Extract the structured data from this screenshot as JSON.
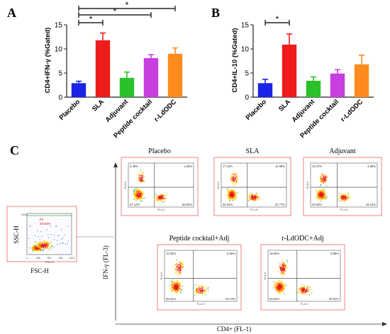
{
  "chart_data": [
    {
      "type": "bar",
      "panel_label": "A",
      "ylabel": "CD4+IFN-γ (%Gated)",
      "ylim": [
        0,
        15
      ],
      "yticks": [
        "0",
        "5",
        "10",
        "15"
      ],
      "categories": [
        "Placebo",
        "SLA",
        "Adjuvant",
        "Peptide cocktail",
        "r-LdODC"
      ],
      "values": [
        2.9,
        11.8,
        4.0,
        8.1,
        9.0
      ],
      "errors": [
        0.4,
        1.5,
        1.2,
        0.7,
        1.2
      ],
      "colors": [
        "#1a23e6",
        "#ee1c1c",
        "#2bc12b",
        "#c83ee0",
        "#ff8a1e"
      ],
      "significance": [
        {
          "from": 0,
          "to": 1,
          "label": "*"
        },
        {
          "from": 0,
          "to": 3,
          "label": "*"
        },
        {
          "from": 0,
          "to": 4,
          "label": "*"
        }
      ]
    },
    {
      "type": "bar",
      "panel_label": "B",
      "ylabel": "CD4+IL-10 (%Gated)",
      "ylim": [
        0,
        15
      ],
      "yticks": [
        "0",
        "5",
        "10",
        "15"
      ],
      "categories": [
        "Placebo",
        "SLA",
        "Adjuvant",
        "Peptide cocktail",
        "r-LdODC"
      ],
      "values": [
        2.9,
        10.9,
        3.4,
        4.9,
        6.8
      ],
      "errors": [
        0.8,
        2.2,
        0.8,
        0.8,
        1.9
      ],
      "colors": [
        "#1a23e6",
        "#ee1c1c",
        "#2bc12b",
        "#c83ee0",
        "#ff8a1e"
      ],
      "significance": [
        {
          "from": 0,
          "to": 1,
          "label": "*"
        }
      ]
    }
  ],
  "panel_c": {
    "label": "C",
    "x_axis_title": "CD4+ (FL-1)",
    "y_axis_title": "IFN-γ (FL-3)",
    "gating": {
      "title": "FSC-H",
      "ylabel": "SSC-H",
      "gate_label": "P1",
      "gate_percent": "49.92%",
      "x_ticks": [
        "0",
        "256",
        "512",
        "768",
        "1024"
      ],
      "x_axis_small": "FSC-H",
      "y_top": "1024"
    },
    "plots": [
      {
        "title": "Placebo",
        "q1": "0.48%",
        "q2": "1.56%",
        "q3": "67.14%",
        "q4": "30.82%"
      },
      {
        "title": "SLA",
        "q1": "17.12%",
        "q2": "11.68%",
        "q3": "48.44%",
        "q4": "22.77%"
      },
      {
        "title": "Adjuvant",
        "q1": "10.47%",
        "q2": "4.68%",
        "q3": "40.63%",
        "q4": "44.23%"
      },
      {
        "title": "Peptide cocktail+Adj",
        "q1": "15.25%",
        "q2": "6.60%",
        "q3": "58.41%",
        "q4": "19.74%"
      },
      {
        "title": "r-LdODC+Adj",
        "q1": "19.60%",
        "q2": "8.96%",
        "q3": "50.54%",
        "q4": "20.91%"
      }
    ],
    "small_axis": {
      "x": "FL1-H",
      "y": "FL3-H"
    }
  },
  "colors": {
    "box_border": "#f08080",
    "gate_line": "#3cb44b",
    "axis_line": "#333333"
  }
}
